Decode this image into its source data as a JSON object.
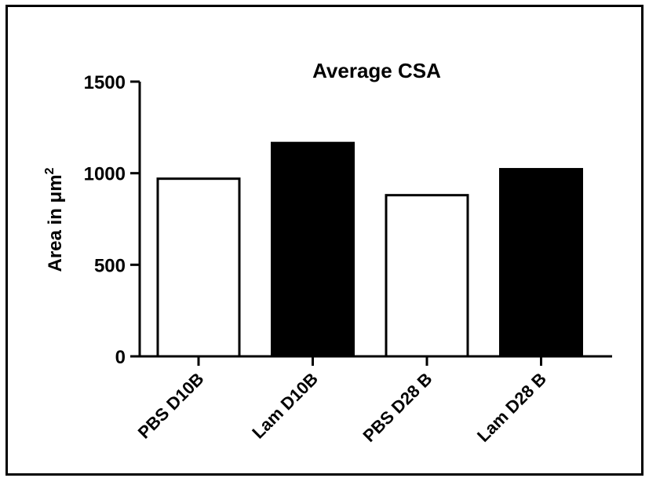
{
  "chart_data": {
    "type": "bar",
    "title": "Average CSA",
    "xlabel": "",
    "ylabel": "Area in μm",
    "ylabel_superscript": "2",
    "categories": [
      "PBS D10B",
      "Lam D10B",
      "PBS D28 B",
      "Lam D28 B"
    ],
    "values": [
      970,
      1165,
      880,
      1022
    ],
    "bar_fills": [
      "#ffffff",
      "#000000",
      "#ffffff",
      "#000000"
    ],
    "ylim": [
      0,
      1500
    ],
    "yticks": [
      0,
      500,
      1000,
      1500
    ],
    "ytick_labels": [
      "0",
      "500",
      "1000",
      "1500"
    ],
    "grid": false,
    "legend": "none"
  }
}
